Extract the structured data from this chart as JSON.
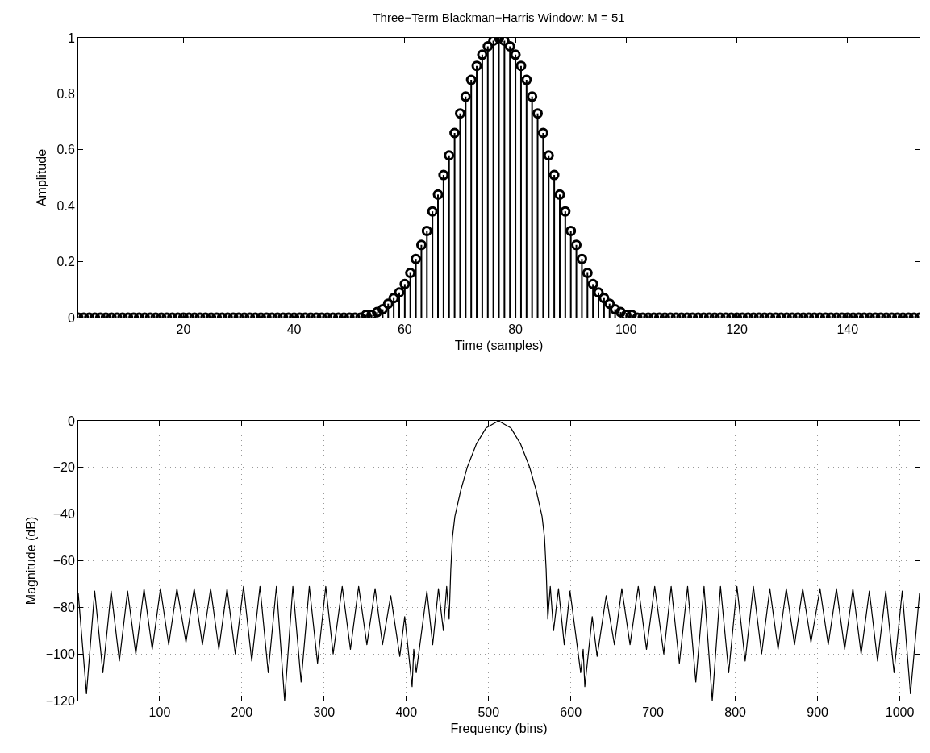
{
  "chart_data": [
    {
      "type": "lollipop",
      "title": "Three−Term Blackman−Harris Window: M = 51",
      "xlabel": "Time (samples)",
      "ylabel": "Amplitude",
      "marker": "circle",
      "x": [
        1,
        2,
        3,
        4,
        5,
        6,
        7,
        8,
        9,
        10,
        11,
        12,
        13,
        14,
        15,
        16,
        17,
        18,
        19,
        20,
        21,
        22,
        23,
        24,
        25,
        26,
        27,
        28,
        29,
        30,
        31,
        32,
        33,
        34,
        35,
        36,
        37,
        38,
        39,
        40,
        41,
        42,
        43,
        44,
        45,
        46,
        47,
        48,
        49,
        50,
        51,
        52,
        53,
        54,
        55,
        56,
        57,
        58,
        59,
        60,
        61,
        62,
        63,
        64,
        65,
        66,
        67,
        68,
        69,
        70,
        71,
        72,
        73,
        74,
        75,
        76,
        77,
        78,
        79,
        80,
        81,
        82,
        83,
        84,
        85,
        86,
        87,
        88,
        89,
        90,
        91,
        92,
        93,
        94,
        95,
        96,
        97,
        98,
        99,
        100,
        101,
        102,
        103,
        104,
        105,
        106,
        107,
        108,
        109,
        110,
        111,
        112,
        113,
        114,
        115,
        116,
        117,
        118,
        119,
        120,
        121,
        122,
        123,
        124,
        125,
        126,
        127,
        128,
        129,
        130,
        131,
        132,
        133,
        134,
        135,
        136,
        137,
        138,
        139,
        140,
        141,
        142,
        143,
        144,
        145,
        146,
        147,
        148,
        149,
        150,
        151,
        152,
        153
      ],
      "series": [
        {
          "color": "#000000",
          "values": [
            0,
            0,
            0,
            0,
            0,
            0,
            0,
            0,
            0,
            0,
            0,
            0,
            0,
            0,
            0,
            0,
            0,
            0,
            0,
            0,
            0,
            0,
            0,
            0,
            0,
            0,
            0,
            0,
            0,
            0,
            0,
            0,
            0,
            0,
            0,
            0,
            0,
            0,
            0,
            0,
            0,
            0,
            0,
            0,
            0,
            0,
            0,
            0,
            0,
            0,
            0,
            0,
            0.01,
            0.01,
            0.02,
            0.03,
            0.05,
            0.07,
            0.09,
            0.12,
            0.16,
            0.21,
            0.26,
            0.31,
            0.38,
            0.44,
            0.51,
            0.58,
            0.66,
            0.73,
            0.79,
            0.85,
            0.9,
            0.94,
            0.97,
            0.99,
            1,
            0.99,
            0.97,
            0.94,
            0.9,
            0.85,
            0.79,
            0.73,
            0.66,
            0.58,
            0.51,
            0.44,
            0.38,
            0.31,
            0.26,
            0.21,
            0.16,
            0.12,
            0.09,
            0.07,
            0.05,
            0.03,
            0.02,
            0.01,
            0.01,
            0,
            0,
            0,
            0,
            0,
            0,
            0,
            0,
            0,
            0,
            0,
            0,
            0,
            0,
            0,
            0,
            0,
            0,
            0,
            0,
            0,
            0,
            0,
            0,
            0,
            0,
            0,
            0,
            0,
            0,
            0,
            0,
            0,
            0,
            0,
            0,
            0,
            0,
            0,
            0,
            0,
            0,
            0,
            0,
            0,
            0,
            0,
            0,
            0,
            0,
            0,
            0
          ]
        }
      ],
      "xlim": [
        1,
        153
      ],
      "xticks": [
        20,
        40,
        60,
        80,
        100,
        120,
        140
      ],
      "ylim": [
        0,
        1
      ],
      "yticks": [
        0,
        0.2,
        0.4,
        0.6,
        0.8,
        1
      ]
    },
    {
      "type": "line",
      "xlabel": "Frequency (bins)",
      "ylabel": "Magnitude (dB)",
      "grid": true,
      "line_style": "solid",
      "x": [
        1,
        11,
        21,
        31,
        41,
        51,
        61,
        71,
        81,
        91,
        101,
        111,
        121,
        132,
        142,
        152,
        162,
        172,
        182,
        192,
        202,
        212,
        222,
        232,
        242,
        252,
        262,
        272,
        282,
        292,
        302,
        311,
        322,
        332,
        342,
        352,
        362,
        371,
        381,
        392,
        398,
        407,
        409,
        412,
        425,
        432,
        439,
        445,
        449,
        452,
        454,
        456,
        459,
        466,
        474,
        485,
        497,
        512,
        527,
        539,
        550,
        558,
        565,
        568,
        570,
        572,
        575,
        579,
        585,
        592,
        599,
        612,
        615,
        617,
        626,
        632,
        643,
        653,
        662,
        672,
        682,
        692,
        702,
        713,
        722,
        732,
        742,
        752,
        762,
        772,
        782,
        792,
        802,
        812,
        822,
        832,
        842,
        852,
        862,
        872,
        882,
        892,
        903,
        913,
        923,
        933,
        943,
        953,
        963,
        973,
        983,
        993,
        1003,
        1013,
        1024
      ],
      "series": [
        {
          "color": "#000000",
          "values": [
            -74,
            -117,
            -73,
            -108,
            -73,
            -103,
            -73,
            -100,
            -72,
            -98,
            -72,
            -96,
            -72,
            -95,
            -72,
            -96,
            -72,
            -98,
            -72,
            -100,
            -71,
            -103,
            -71,
            -108,
            -71,
            -120,
            -71,
            -112,
            -71,
            -104,
            -71,
            -100,
            -71,
            -98,
            -71,
            -96,
            -72,
            -96,
            -75,
            -101,
            -84,
            -114,
            -98,
            -108,
            -73,
            -96,
            -72,
            -90,
            -71,
            -85,
            -64,
            -50,
            -41,
            -30,
            -20,
            -10,
            -3,
            0,
            -3,
            -10,
            -20,
            -30,
            -41,
            -50,
            -64,
            -85,
            -71,
            -90,
            -72,
            -96,
            -73,
            -108,
            -98,
            -114,
            -84,
            -101,
            -75,
            -96,
            -72,
            -96,
            -71,
            -98,
            -71,
            -100,
            -71,
            -104,
            -71,
            -112,
            -71,
            -120,
            -71,
            -108,
            -71,
            -103,
            -71,
            -100,
            -72,
            -98,
            -72,
            -96,
            -72,
            -95,
            -72,
            -96,
            -72,
            -98,
            -72,
            -100,
            -73,
            -103,
            -73,
            -108,
            -73,
            -117,
            -74
          ]
        }
      ],
      "xlim": [
        1,
        1024
      ],
      "xticks": [
        100,
        200,
        300,
        400,
        500,
        600,
        700,
        800,
        900,
        1000
      ],
      "ylim": [
        -120,
        0
      ],
      "yticks": [
        -120,
        -100,
        -80,
        -60,
        -40,
        -20,
        0
      ]
    }
  ]
}
